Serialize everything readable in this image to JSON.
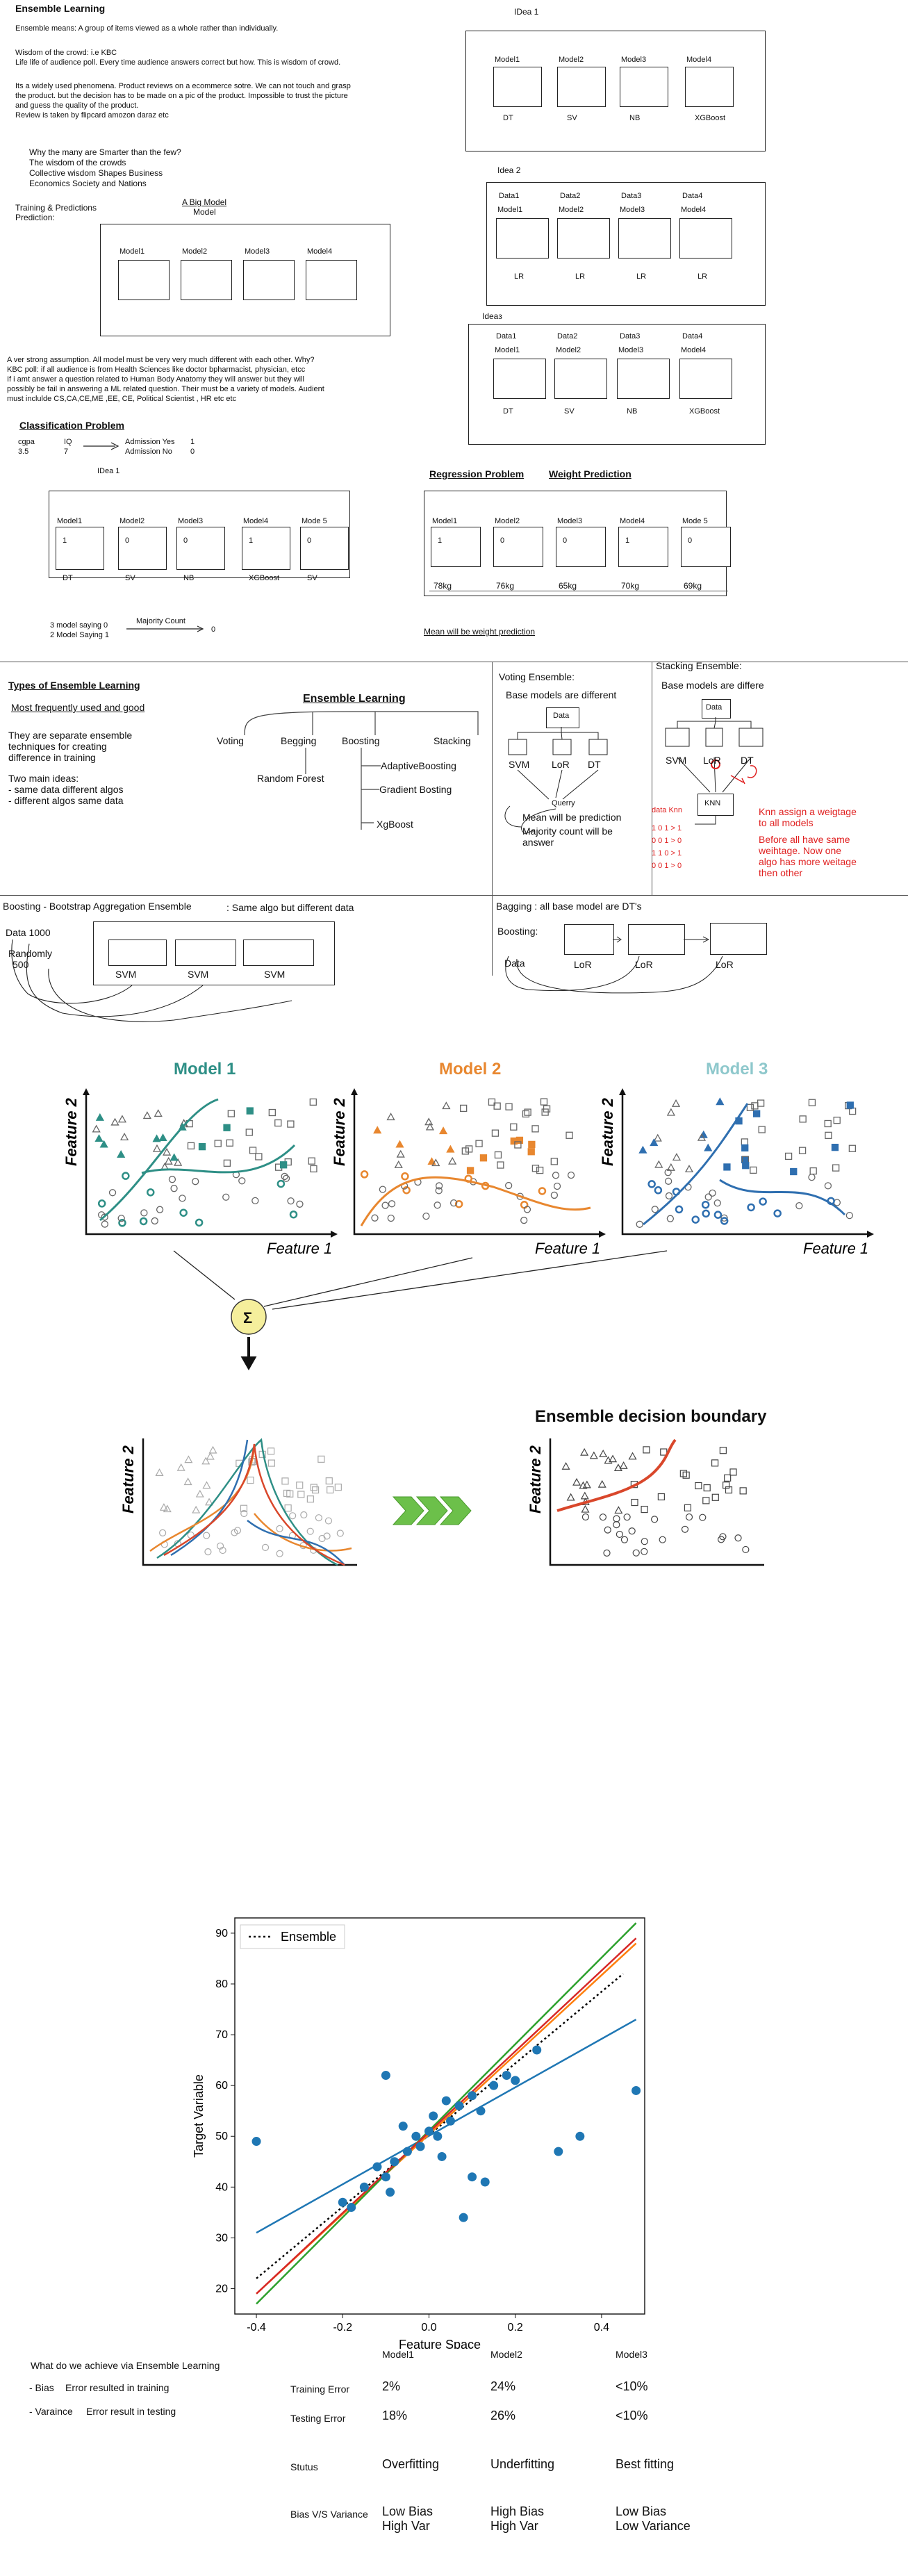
{
  "intro": {
    "title": "Ensemble Learning",
    "line1": "Ensemble means: A group of items viewed as a whole rather than individually.",
    "line2": "Wisdom of the crowd: i.e KBC",
    "line3": "Life life of audience poll. Every time audience answers correct but how. This is wisdom of crowd.",
    "line4": "Its a widely used phenomena. Product reviews on a ecommerce sotre. We can not touch and grasp",
    "line5": "the product. but the decision has to be  made on a pic of the product. Impossible to trust the picture",
    "line6": "and guess the quality of the product.",
    "line7": "Review is taken by flipcard amozon daraz etc",
    "q1": "Why the many are Smarter than the few?",
    "q2": "The wisdom of the crowds",
    "q3": "Collective wisdom Shapes Business",
    "q4": "Economics Society and Nations",
    "training": "Training & Predictions",
    "prediction": "Prediction:",
    "big_model_1": "A Big Model",
    "big_model_2": "Model",
    "models": [
      "Model1",
      "Model2",
      "Model3",
      "Model4"
    ]
  },
  "idea1_top": {
    "title": "IDea 1",
    "models": [
      "Model1",
      "Model2",
      "Model3",
      "Model4"
    ],
    "algos": [
      "DT",
      "SV",
      "NB",
      "XGBoost"
    ]
  },
  "idea2": {
    "title": "Idea 2",
    "data": [
      "Data1",
      "Data2",
      "Data3",
      "Data4"
    ],
    "models": [
      "Model1",
      "Model2",
      "Model3",
      "Model4"
    ],
    "algos": [
      "LR",
      "LR",
      "LR",
      "LR"
    ]
  },
  "idea3": {
    "title": "Ideaз",
    "data": [
      "Data1",
      "Data2",
      "Data3",
      "Data4"
    ],
    "models": [
      "Model1",
      "Model2",
      "Model3",
      "Model4"
    ],
    "algos": [
      "DT",
      "SV",
      "NB",
      "XGBoost"
    ]
  },
  "assumption": {
    "l1": "A ver strong assumption. All model must be very very much different with each other. Why?",
    "l2": "KBC poll: if all audience is from Health Sciences like doctor bpharmacist, physician, etcc",
    "l3": "If i amt answer a question related to Human Body Anatomy they will answer but they will",
    "l4": "possibly be fail in answering a ML related question. Their must be a variety of models. Audient",
    "l5": "must inclulde CS,CA,CE,ME ,EE, CE, Political Scientist , HR etc etc"
  },
  "classification": {
    "title": "Classification Problem",
    "cgpa": "cgpa",
    "cgpa_val": "3.5",
    "iq": "IQ",
    "iq_val": "7",
    "adm_yes": "Admission Yes",
    "adm_no": "Admission No",
    "yes_val": "1",
    "no_val": "0",
    "idea": "IDea 1",
    "models": [
      "Model1",
      "Model2",
      "Model3",
      "Model4",
      "Mode 5"
    ],
    "values": [
      "1",
      "0",
      "0",
      "1",
      "0"
    ],
    "algos": [
      "DT",
      "SV",
      "NB",
      "XGBoost",
      "SV"
    ],
    "saying1": "3 model saying 0",
    "saying2": "2 Model Saying 1",
    "majority": "Majority Count",
    "result": "0"
  },
  "regression": {
    "title": "Regression Problem",
    "title2": "Weight Prediction",
    "models": [
      "Model1",
      "Model2",
      "Model3",
      "Model4",
      "Mode 5"
    ],
    "values": [
      "1",
      "0",
      "0",
      "1",
      "0"
    ],
    "weights": [
      "78kg",
      "76kg",
      "65kg",
      "70kg",
      "69kg"
    ],
    "mean": "Mean will be weight prediction"
  },
  "types": {
    "title": "Types of Ensemble Learning",
    "sub": "Most frequently used and good",
    "desc1": "They are separate ensemble",
    "desc2": "techniques for creating",
    "desc3": "difference in training",
    "ideas": "Two main ideas:",
    "idea_a": "- same data different algos",
    "idea_b": "- different algos same data",
    "tree_root": "Ensemble Learning",
    "tree_children": [
      "Voting",
      "Begging",
      "Boosting",
      "Stacking"
    ],
    "random_forest": "Random Forest",
    "boosting_children": [
      "AdaptiveBoosting",
      "Gradient Bosting",
      "XgBoost"
    ]
  },
  "voting": {
    "title": "Voting Ensemble:",
    "sub": "Base models are different",
    "data": "Data",
    "models": [
      "SVM",
      "LoR",
      "DT"
    ],
    "query": "Querry",
    "mean": "Mean will be prediction",
    "majority1": "Majority count will be",
    "majority2": "answer"
  },
  "stacking": {
    "title": "Stacking Ensemble:",
    "sub": "Base models are differe",
    "data": "Data",
    "models": [
      "SVM",
      "LoR",
      "DT"
    ],
    "knn": "KNN",
    "data_knn": "data Knn",
    "rows": [
      "1 0 1 > 1",
      "0 0 1 > 0",
      "1 1 0 > 1",
      "0 0 1 > 0"
    ],
    "note1": [
      "Knn assign a weigtage",
      "to all models"
    ],
    "note2": [
      "Before all have same",
      "weihtage. Now one",
      "algo has more weitage",
      "then other"
    ]
  },
  "boosting_bag": {
    "title": "Boosting - Bootstrap Aggregation Ensemble",
    "sub": ": Same algo but different data",
    "data": "Data 1000",
    "random": "Randomly",
    "n": "500",
    "models": [
      "SVM",
      "SVM",
      "SVM"
    ]
  },
  "bagging": {
    "title": "Bagging : all base model are DT's",
    "boosting": "Boosting:",
    "data": "Data",
    "models": [
      "LoR",
      "LoR",
      "LoR"
    ]
  },
  "boundary": {
    "titles": [
      "Model 1",
      "Model 2",
      "Model 3"
    ],
    "title_colors": [
      "#2e8f86",
      "#e8872f",
      "#8ec8cc"
    ],
    "xlabel": "Feature 1",
    "ylabel": "Feature 2",
    "sum": "Σ",
    "ensemble_title": "Ensemble decision boundary"
  },
  "chart_data": {
    "type": "scatter",
    "title": "",
    "xlabel": "Feature Space",
    "ylabel": "Target Variable",
    "xlim": [
      -0.45,
      0.5
    ],
    "ylim": [
      15,
      93
    ],
    "xticks": [
      -0.4,
      -0.2,
      0.0,
      0.2,
      0.4
    ],
    "yticks": [
      20,
      30,
      40,
      50,
      60,
      70,
      80,
      90
    ],
    "legend": "top-left",
    "series": [
      {
        "name": "Ensemble",
        "type": "line",
        "style": "dotted",
        "color": "#000000",
        "x": [
          -0.4,
          0.45
        ],
        "y": [
          22,
          82
        ]
      },
      {
        "type": "line",
        "color": "#1f77b4",
        "x": [
          -0.4,
          0.48
        ],
        "y": [
          31,
          73
        ]
      },
      {
        "type": "line",
        "color": "#ff7f0e",
        "x": [
          -0.4,
          0.48
        ],
        "y": [
          19,
          88
        ]
      },
      {
        "type": "line",
        "color": "#2ca02c",
        "x": [
          -0.4,
          0.48
        ],
        "y": [
          17,
          92
        ]
      },
      {
        "type": "line",
        "color": "#d62728",
        "x": [
          -0.4,
          0.48
        ],
        "y": [
          19,
          89
        ]
      },
      {
        "type": "scatter",
        "color": "#1f77b4",
        "x": [
          -0.4,
          -0.1,
          -0.2,
          -0.18,
          -0.15,
          -0.12,
          -0.1,
          -0.08,
          -0.05,
          -0.03,
          0.0,
          0.02,
          0.05,
          0.07,
          0.1,
          0.12,
          0.15,
          0.18,
          0.2,
          0.25,
          0.3,
          0.35,
          0.48,
          -0.02,
          0.08,
          0.1,
          -0.06,
          0.03,
          0.13,
          0.04,
          -0.09,
          0.01
        ],
        "y": [
          49,
          62,
          37,
          36,
          40,
          44,
          42,
          45,
          47,
          50,
          51,
          50,
          53,
          56,
          58,
          55,
          60,
          62,
          61,
          67,
          47,
          50,
          59,
          48,
          34,
          42,
          52,
          46,
          41,
          57,
          39,
          54
        ]
      }
    ]
  },
  "table": {
    "question": "What do we achieve via Ensemble Learning",
    "bias_label": "- Bias",
    "bias_desc": "Error resulted in training",
    "var_label": "- Varaince",
    "var_desc": "Error result in testing",
    "cols": [
      "Model1",
      "Model2",
      "Model3"
    ],
    "rows": [
      {
        "label": "Training Error",
        "cells": [
          "2%",
          "24%",
          "<10%"
        ]
      },
      {
        "label": "Testing Error",
        "cells": [
          "18%",
          "26%",
          "<10%"
        ]
      },
      {
        "label": "Stutus",
        "cells": [
          "Overfitting",
          "Underfitting",
          "Best fitting"
        ]
      },
      {
        "label": "Bias V/S Variance",
        "cells": [
          "Low Bias\nHigh Var",
          "High Bias\nHigh Var",
          "Low Bias\nLow Variance"
        ]
      }
    ]
  }
}
